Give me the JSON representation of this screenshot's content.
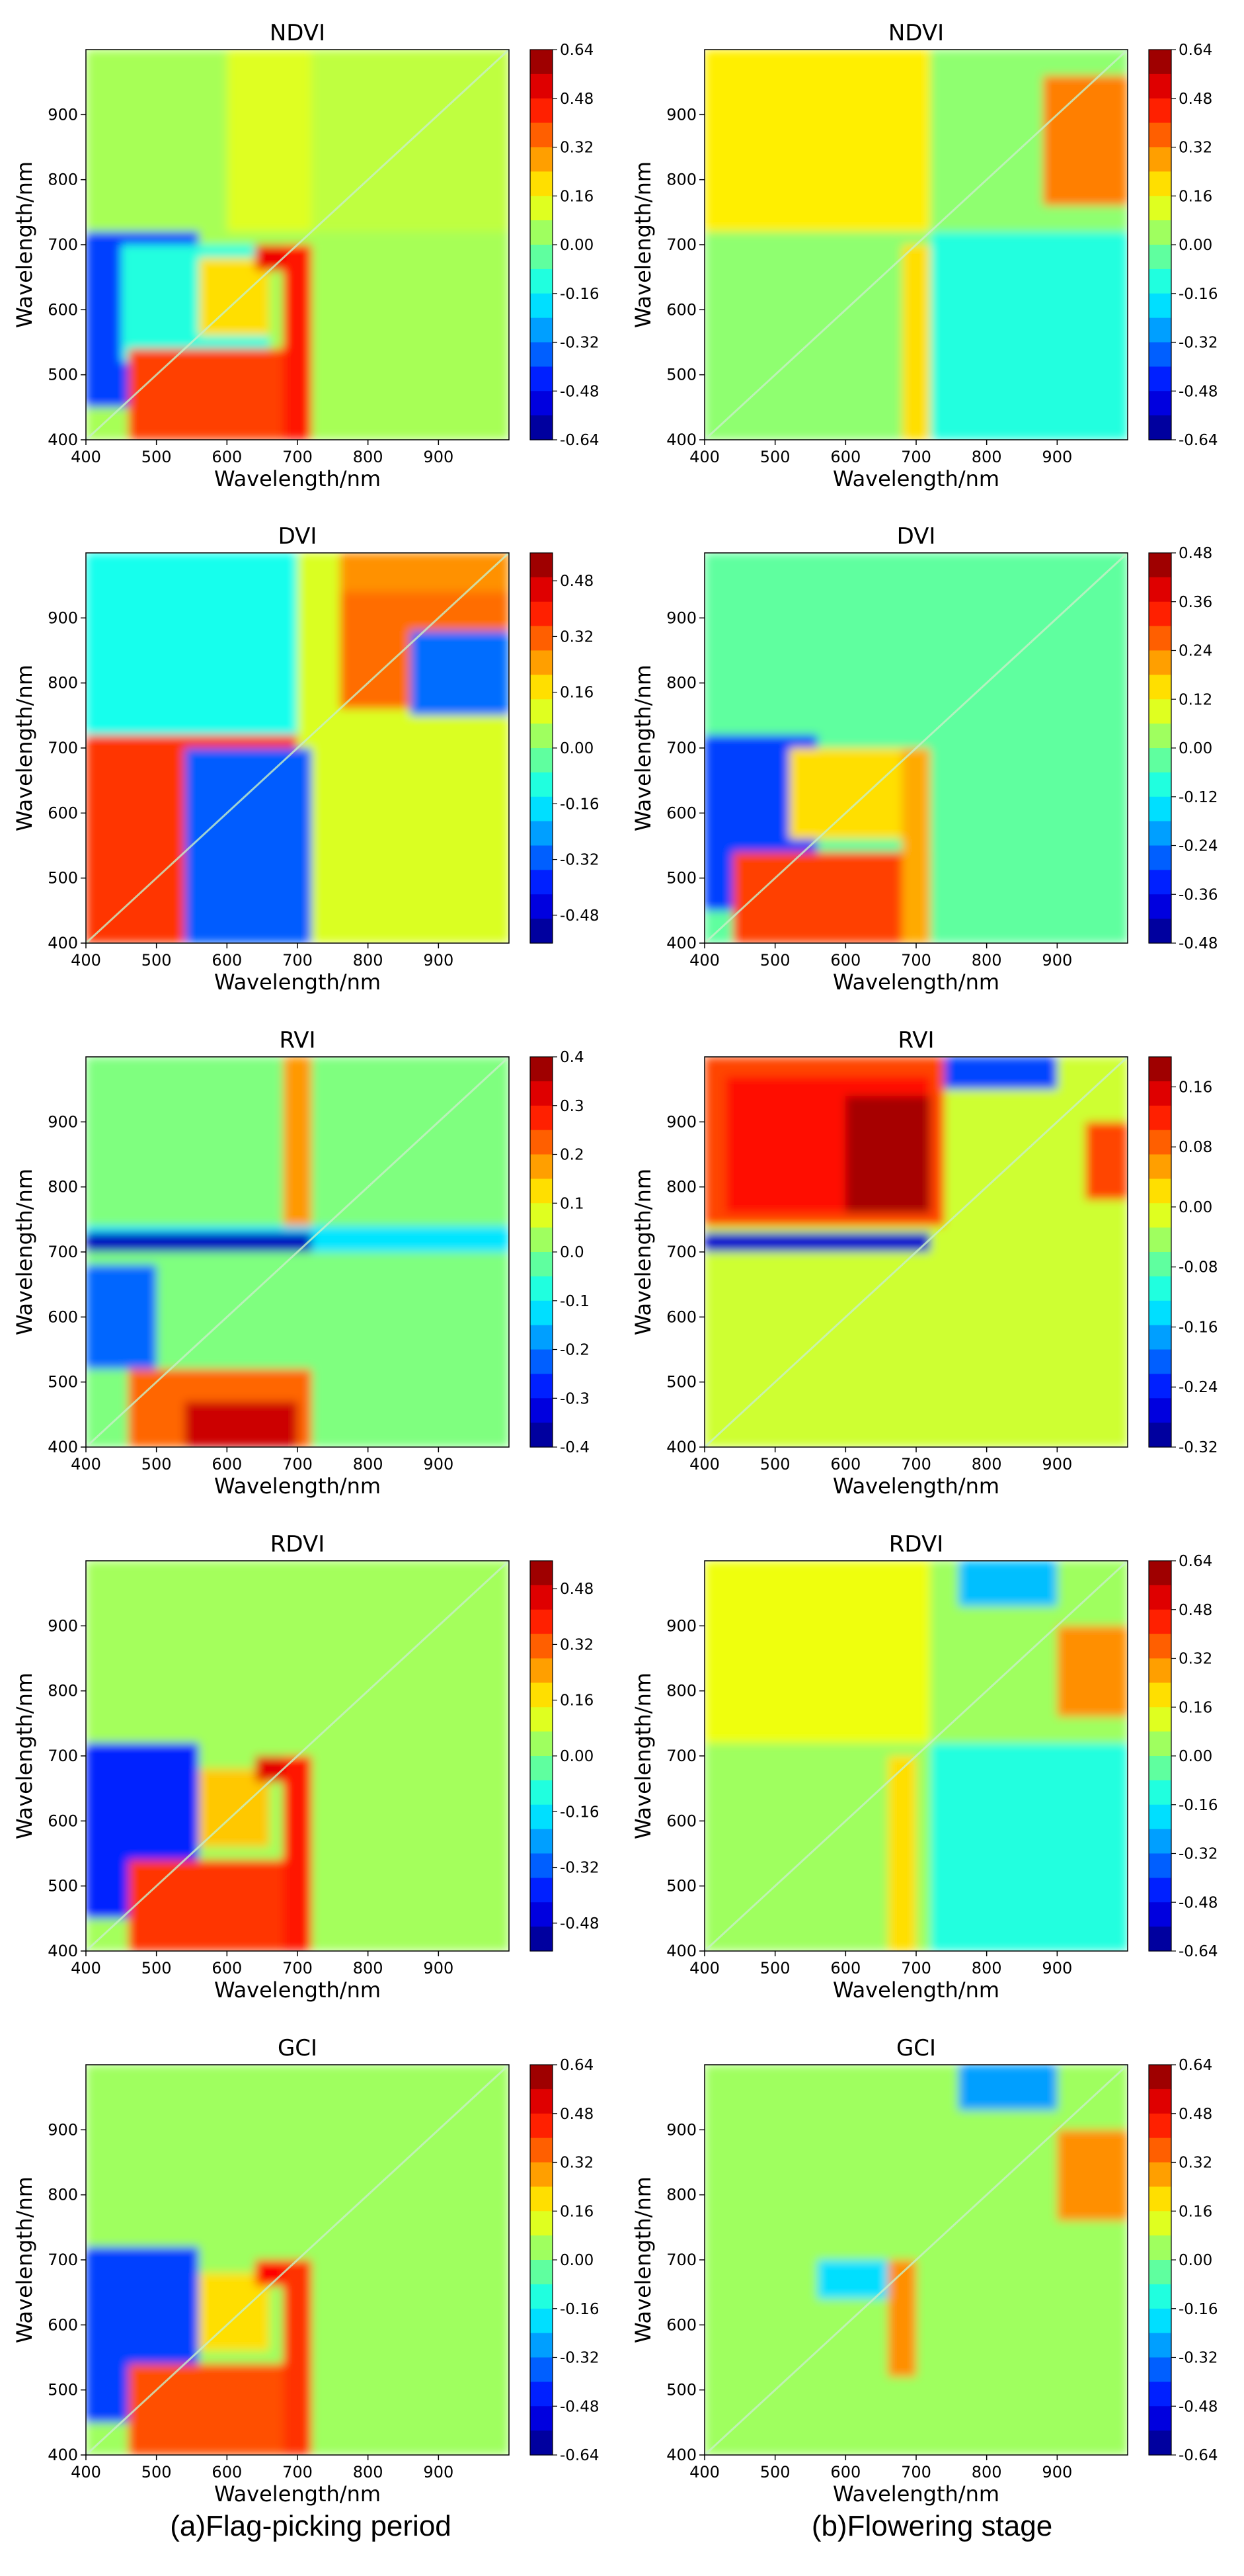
{
  "captions": [
    "(a)Flag-picking period",
    "(b)Flowering stage"
  ],
  "colormap": [
    "#00007f",
    "#0000ff",
    "#007fff",
    "#00ffff",
    "#7fff7f",
    "#ffff00",
    "#ff7f00",
    "#ff0000",
    "#7f0000"
  ],
  "chart_data": [
    {
      "id": "a1",
      "type": "heatmap",
      "title": "NDVI",
      "xlabel": "Wavelength/nm",
      "ylabel": "Wavelength/nm",
      "xlim": [
        400,
        1000
      ],
      "ylim": [
        400,
        1000
      ],
      "xticks": [
        400,
        500,
        600,
        700,
        800,
        900
      ],
      "yticks": [
        400,
        500,
        600,
        700,
        800,
        900
      ],
      "colorbar_ticks": [
        "0.64",
        "0.48",
        "0.32",
        "0.16",
        "0.00",
        "-0.16",
        "-0.32",
        "-0.48",
        "-0.64"
      ],
      "clim": [
        -0.64,
        0.64
      ],
      "regions": [
        {
          "x": [
            400,
            1000
          ],
          "y": [
            400,
            1000
          ],
          "v": 0.05
        },
        {
          "x": [
            600,
            720
          ],
          "y": [
            720,
            1000
          ],
          "v": 0.12
        },
        {
          "x": [
            720,
            1000
          ],
          "y": [
            720,
            1000
          ],
          "v": 0.08
        },
        {
          "x": [
            400,
            560
          ],
          "y": [
            450,
            720
          ],
          "v": -0.4
        },
        {
          "x": [
            450,
            660
          ],
          "y": [
            520,
            700
          ],
          "v": -0.12
        },
        {
          "x": [
            560,
            660
          ],
          "y": [
            560,
            680
          ],
          "v": 0.2
        },
        {
          "x": [
            640,
            700
          ],
          "y": [
            660,
            700
          ],
          "v": 0.5
        },
        {
          "x": [
            460,
            690
          ],
          "y": [
            400,
            540
          ],
          "v": 0.4
        },
        {
          "x": [
            680,
            720
          ],
          "y": [
            400,
            700
          ],
          "v": 0.45
        }
      ]
    },
    {
      "id": "b1",
      "type": "heatmap",
      "title": "NDVI",
      "xlabel": "Wavelength/nm",
      "ylabel": "Wavelength/nm",
      "xlim": [
        400,
        1000
      ],
      "ylim": [
        400,
        1000
      ],
      "xticks": [
        400,
        500,
        600,
        700,
        800,
        900
      ],
      "yticks": [
        400,
        500,
        600,
        700,
        800,
        900
      ],
      "colorbar_ticks": [
        "0.64",
        "0.48",
        "0.32",
        "0.16",
        "0.00",
        "-0.16",
        "-0.32",
        "-0.48",
        "-0.64"
      ],
      "clim": [
        -0.64,
        0.64
      ],
      "regions": [
        {
          "x": [
            400,
            1000
          ],
          "y": [
            400,
            1000
          ],
          "v": 0.02
        },
        {
          "x": [
            400,
            720
          ],
          "y": [
            720,
            1000
          ],
          "v": 0.18
        },
        {
          "x": [
            720,
            1000
          ],
          "y": [
            400,
            720
          ],
          "v": -0.12
        },
        {
          "x": [
            880,
            1000
          ],
          "y": [
            760,
            960
          ],
          "v": 0.32
        },
        {
          "x": [
            680,
            720
          ],
          "y": [
            400,
            700
          ],
          "v": 0.2
        }
      ]
    },
    {
      "id": "a2",
      "type": "heatmap",
      "title": "DVI",
      "xlabel": "Wavelength/nm",
      "ylabel": "Wavelength/nm",
      "xlim": [
        400,
        1000
      ],
      "ylim": [
        400,
        1000
      ],
      "xticks": [
        400,
        500,
        600,
        700,
        800,
        900
      ],
      "yticks": [
        400,
        500,
        600,
        700,
        800,
        900
      ],
      "colorbar_ticks": [
        "0.48",
        "0.32",
        "0.16",
        "0.00",
        "-0.16",
        "-0.32",
        "-0.48"
      ],
      "clim": [
        -0.56,
        0.56
      ],
      "regions": [
        {
          "x": [
            400,
            1000
          ],
          "y": [
            400,
            1000
          ],
          "v": 0.1
        },
        {
          "x": [
            400,
            700
          ],
          "y": [
            720,
            1000
          ],
          "v": -0.12
        },
        {
          "x": [
            400,
            700
          ],
          "y": [
            400,
            720
          ],
          "v": 0.36
        },
        {
          "x": [
            540,
            720
          ],
          "y": [
            400,
            700
          ],
          "v": -0.32
        },
        {
          "x": [
            760,
            1000
          ],
          "y": [
            940,
            1000
          ],
          "v": 0.26
        },
        {
          "x": [
            760,
            1000
          ],
          "y": [
            760,
            940
          ],
          "v": 0.3
        },
        {
          "x": [
            860,
            1000
          ],
          "y": [
            750,
            880
          ],
          "v": -0.3
        }
      ]
    },
    {
      "id": "b2",
      "type": "heatmap",
      "title": "DVI",
      "xlabel": "Wavelength/nm",
      "ylabel": "Wavelength/nm",
      "xlim": [
        400,
        1000
      ],
      "ylim": [
        400,
        1000
      ],
      "xticks": [
        400,
        500,
        600,
        700,
        800,
        900
      ],
      "yticks": [
        400,
        500,
        600,
        700,
        800,
        900
      ],
      "colorbar_ticks": [
        "0.48",
        "0.36",
        "0.24",
        "0.12",
        "0.00",
        "-0.12",
        "-0.24",
        "-0.36",
        "-0.48"
      ],
      "clim": [
        -0.48,
        0.48
      ],
      "regions": [
        {
          "x": [
            400,
            1000
          ],
          "y": [
            400,
            1000
          ],
          "v": -0.03
        },
        {
          "x": [
            400,
            560
          ],
          "y": [
            450,
            720
          ],
          "v": -0.3
        },
        {
          "x": [
            520,
            680
          ],
          "y": [
            560,
            700
          ],
          "v": 0.15
        },
        {
          "x": [
            440,
            720
          ],
          "y": [
            400,
            540
          ],
          "v": 0.3
        },
        {
          "x": [
            680,
            720
          ],
          "y": [
            400,
            700
          ],
          "v": 0.2
        }
      ]
    },
    {
      "id": "a3",
      "type": "heatmap",
      "title": "RVI",
      "xlabel": "Wavelength/nm",
      "ylabel": "Wavelength/nm",
      "xlim": [
        400,
        1000
      ],
      "ylim": [
        400,
        1000
      ],
      "xticks": [
        400,
        500,
        600,
        700,
        800,
        900
      ],
      "yticks": [
        400,
        500,
        600,
        700,
        800,
        900
      ],
      "colorbar_ticks": [
        "0.4",
        "0.3",
        "0.2",
        "0.1",
        "0.0",
        "-0.1",
        "-0.2",
        "-0.3",
        "-0.4"
      ],
      "clim": [
        -0.4,
        0.4
      ],
      "regions": [
        {
          "x": [
            400,
            1000
          ],
          "y": [
            400,
            1000
          ],
          "v": 0.0
        },
        {
          "x": [
            400,
            1000
          ],
          "y": [
            700,
            740
          ],
          "v": -0.12
        },
        {
          "x": [
            400,
            720
          ],
          "y": [
            700,
            730
          ],
          "v": -0.35
        },
        {
          "x": [
            400,
            500
          ],
          "y": [
            520,
            680
          ],
          "v": -0.22
        },
        {
          "x": [
            680,
            720
          ],
          "y": [
            740,
            1000
          ],
          "v": 0.18
        },
        {
          "x": [
            460,
            720
          ],
          "y": [
            400,
            520
          ],
          "v": 0.22
        },
        {
          "x": [
            540,
            700
          ],
          "y": [
            400,
            470
          ],
          "v": 0.34
        }
      ]
    },
    {
      "id": "b3",
      "type": "heatmap",
      "title": "RVI",
      "xlabel": "Wavelength/nm",
      "ylabel": "Wavelength/nm",
      "xlim": [
        400,
        1000
      ],
      "ylim": [
        400,
        1000
      ],
      "xticks": [
        400,
        500,
        600,
        700,
        800,
        900
      ],
      "yticks": [
        400,
        500,
        600,
        700,
        800,
        900
      ],
      "colorbar_ticks": [
        "0.16",
        "0.08",
        "0.00",
        "-0.08",
        "-0.16",
        "-0.24",
        "-0.32"
      ],
      "clim": [
        -0.32,
        0.2
      ],
      "regions": [
        {
          "x": [
            400,
            1000
          ],
          "y": [
            400,
            1000
          ],
          "v": -0.02
        },
        {
          "x": [
            400,
            740
          ],
          "y": [
            740,
            1000
          ],
          "v": 0.1
        },
        {
          "x": [
            430,
            720
          ],
          "y": [
            760,
            970
          ],
          "v": 0.13
        },
        {
          "x": [
            600,
            720
          ],
          "y": [
            760,
            940
          ],
          "v": 0.18
        },
        {
          "x": [
            740,
            900
          ],
          "y": [
            950,
            1000
          ],
          "v": -0.22
        },
        {
          "x": [
            940,
            1000
          ],
          "y": [
            780,
            900
          ],
          "v": 0.1
        },
        {
          "x": [
            400,
            720
          ],
          "y": [
            700,
            730
          ],
          "v": -0.28
        }
      ]
    },
    {
      "id": "a4",
      "type": "heatmap",
      "title": "RDVI",
      "xlabel": "Wavelength/nm",
      "ylabel": "Wavelength/nm",
      "xlim": [
        400,
        1000
      ],
      "ylim": [
        400,
        1000
      ],
      "xticks": [
        400,
        500,
        600,
        700,
        800,
        900
      ],
      "yticks": [
        400,
        500,
        600,
        700,
        800,
        900
      ],
      "colorbar_ticks": [
        "0.48",
        "0.32",
        "0.16",
        "0.00",
        "-0.16",
        "-0.32",
        "-0.48"
      ],
      "clim": [
        -0.56,
        0.56
      ],
      "regions": [
        {
          "x": [
            400,
            1000
          ],
          "y": [
            400,
            1000
          ],
          "v": 0.04
        },
        {
          "x": [
            400,
            560
          ],
          "y": [
            450,
            720
          ],
          "v": -0.38
        },
        {
          "x": [
            560,
            660
          ],
          "y": [
            560,
            680
          ],
          "v": 0.2
        },
        {
          "x": [
            640,
            700
          ],
          "y": [
            660,
            700
          ],
          "v": 0.45
        },
        {
          "x": [
            460,
            690
          ],
          "y": [
            400,
            540
          ],
          "v": 0.36
        },
        {
          "x": [
            680,
            720
          ],
          "y": [
            400,
            700
          ],
          "v": 0.4
        }
      ]
    },
    {
      "id": "b4",
      "type": "heatmap",
      "title": "RDVI",
      "xlabel": "Wavelength/nm",
      "ylabel": "Wavelength/nm",
      "xlim": [
        400,
        1000
      ],
      "ylim": [
        400,
        1000
      ],
      "xticks": [
        400,
        500,
        600,
        700,
        800,
        900
      ],
      "yticks": [
        400,
        500,
        600,
        700,
        800,
        900
      ],
      "colorbar_ticks": [
        "0.64",
        "0.48",
        "0.32",
        "0.16",
        "0.00",
        "-0.16",
        "-0.32",
        "-0.48",
        "-0.64"
      ],
      "clim": [
        -0.64,
        0.64
      ],
      "regions": [
        {
          "x": [
            400,
            1000
          ],
          "y": [
            400,
            1000
          ],
          "v": 0.04
        },
        {
          "x": [
            400,
            720
          ],
          "y": [
            720,
            1000
          ],
          "v": 0.14
        },
        {
          "x": [
            720,
            1000
          ],
          "y": [
            400,
            720
          ],
          "v": -0.12
        },
        {
          "x": [
            760,
            900
          ],
          "y": [
            930,
            1000
          ],
          "v": -0.24
        },
        {
          "x": [
            900,
            1000
          ],
          "y": [
            760,
            900
          ],
          "v": 0.3
        },
        {
          "x": [
            660,
            700
          ],
          "y": [
            400,
            700
          ],
          "v": 0.2
        }
      ]
    },
    {
      "id": "a5",
      "type": "heatmap",
      "title": "GCI",
      "xlabel": "Wavelength/nm",
      "ylabel": "Wavelength/nm",
      "xlim": [
        400,
        1000
      ],
      "ylim": [
        400,
        1000
      ],
      "xticks": [
        400,
        500,
        600,
        700,
        800,
        900
      ],
      "yticks": [
        400,
        500,
        600,
        700,
        800,
        900
      ],
      "colorbar_ticks": [
        "0.64",
        "0.48",
        "0.32",
        "0.16",
        "0.00",
        "-0.16",
        "-0.32",
        "-0.48",
        "-0.64"
      ],
      "clim": [
        -0.64,
        0.64
      ],
      "regions": [
        {
          "x": [
            400,
            1000
          ],
          "y": [
            400,
            1000
          ],
          "v": 0.04
        },
        {
          "x": [
            400,
            560
          ],
          "y": [
            450,
            720
          ],
          "v": -0.4
        },
        {
          "x": [
            560,
            660
          ],
          "y": [
            560,
            680
          ],
          "v": 0.2
        },
        {
          "x": [
            640,
            700
          ],
          "y": [
            660,
            700
          ],
          "v": 0.48
        },
        {
          "x": [
            460,
            690
          ],
          "y": [
            400,
            540
          ],
          "v": 0.38
        },
        {
          "x": [
            680,
            720
          ],
          "y": [
            400,
            700
          ],
          "v": 0.42
        }
      ]
    },
    {
      "id": "b5",
      "type": "heatmap",
      "title": "GCI",
      "xlabel": "Wavelength/nm",
      "ylabel": "Wavelength/nm",
      "xlim": [
        400,
        1000
      ],
      "ylim": [
        400,
        1000
      ],
      "xticks": [
        400,
        500,
        600,
        700,
        800,
        900
      ],
      "yticks": [
        400,
        500,
        600,
        700,
        800,
        900
      ],
      "colorbar_ticks": [
        "0.64",
        "0.48",
        "0.32",
        "0.16",
        "0.00",
        "-0.16",
        "-0.32",
        "-0.48",
        "-0.64"
      ],
      "clim": [
        -0.64,
        0.64
      ],
      "regions": [
        {
          "x": [
            400,
            1000
          ],
          "y": [
            400,
            1000
          ],
          "v": 0.04
        },
        {
          "x": [
            760,
            900
          ],
          "y": [
            930,
            1000
          ],
          "v": -0.28
        },
        {
          "x": [
            900,
            1000
          ],
          "y": [
            760,
            900
          ],
          "v": 0.3
        },
        {
          "x": [
            560,
            700
          ],
          "y": [
            640,
            700
          ],
          "v": -0.2
        },
        {
          "x": [
            660,
            700
          ],
          "y": [
            520,
            700
          ],
          "v": 0.3
        }
      ]
    }
  ]
}
